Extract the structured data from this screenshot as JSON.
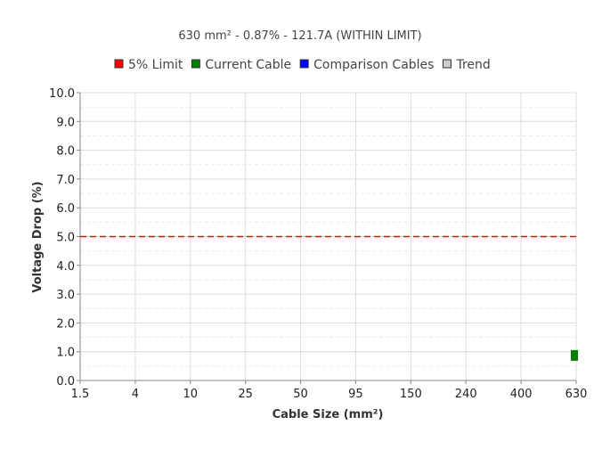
{
  "chart_data": {
    "type": "scatter",
    "title": "630 mm² - 0.87% - 121.7A (WITHIN LIMIT)",
    "xlabel": "Cable Size (mm²)",
    "ylabel": "Voltage Drop (%)",
    "categories": [
      "1.5",
      "4",
      "10",
      "25",
      "50",
      "95",
      "150",
      "240",
      "400",
      "630"
    ],
    "ylim": [
      0,
      10
    ],
    "yticks": [
      "0.0",
      "1.0",
      "2.0",
      "3.0",
      "4.0",
      "5.0",
      "6.0",
      "7.0",
      "8.0",
      "9.0",
      "10.0"
    ],
    "grid": true,
    "legend_position": "top-center",
    "legend": [
      {
        "name": "5% Limit",
        "color": "#ff0000"
      },
      {
        "name": "Current Cable",
        "color": "#008000"
      },
      {
        "name": "Comparison Cables",
        "color": "#0000ff"
      },
      {
        "name": "Trend",
        "color": "#cccccc"
      }
    ],
    "series": [
      {
        "name": "5% Limit",
        "kind": "line",
        "style": "dashed",
        "color": "#ff0000",
        "y": 5.0
      },
      {
        "name": "Current Cable",
        "kind": "point",
        "color": "#008000",
        "points": [
          {
            "x": "630",
            "y": 0.87
          }
        ]
      },
      {
        "name": "Comparison Cables",
        "kind": "point",
        "color": "#0000ff",
        "points": []
      },
      {
        "name": "Trend",
        "kind": "line",
        "color": "#cccccc",
        "points": []
      }
    ]
  }
}
